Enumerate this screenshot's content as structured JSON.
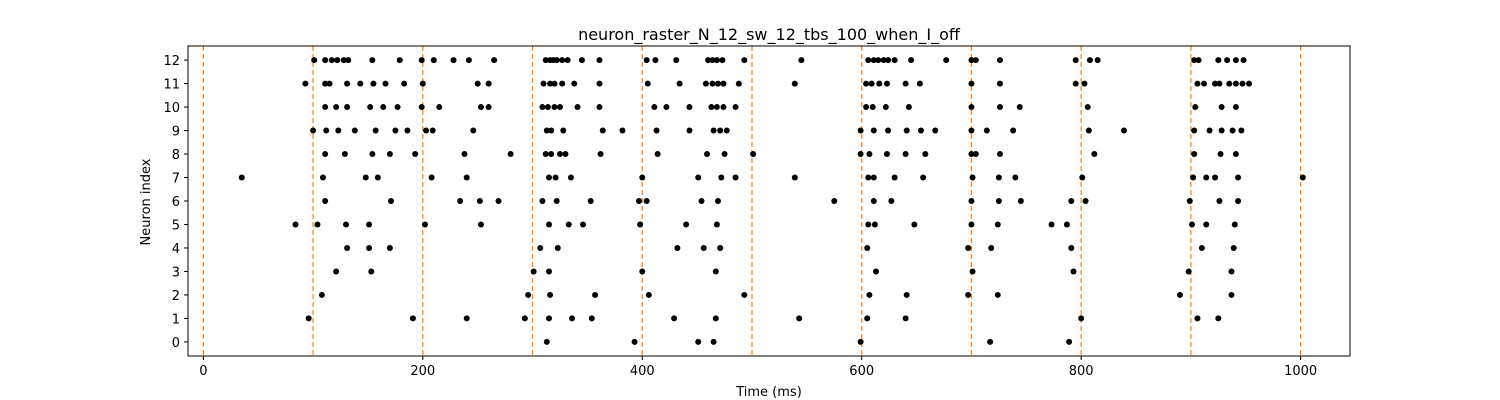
{
  "chart_data": {
    "type": "scatter",
    "title": "neuron_raster_N_12_sw_12_tbs_100_when_I_off",
    "xlabel": "Time (ms)",
    "ylabel": "Neuron index",
    "xlim": [
      -14,
      1045
    ],
    "ylim": [
      -0.6,
      12.6
    ],
    "xticks": [
      0,
      200,
      400,
      600,
      800,
      1000
    ],
    "yticks": [
      0,
      1,
      2,
      3,
      4,
      5,
      6,
      7,
      8,
      9,
      10,
      11,
      12
    ],
    "grid": false,
    "marker_color": "#000000",
    "vline_color": "#ff7f0e",
    "stimulus_lines": [
      0,
      100,
      200,
      300,
      400,
      500,
      600,
      700,
      800,
      900,
      1000
    ],
    "spikes": [
      {
        "neuron": 12,
        "times": [
          101,
          111,
          117,
          122,
          128,
          132,
          154,
          179,
          199,
          210,
          228,
          242,
          265,
          312,
          316,
          319,
          322,
          327,
          332,
          345,
          361,
          404,
          412,
          431,
          460,
          464,
          468,
          473,
          493,
          545,
          606,
          611,
          615,
          620,
          624,
          630,
          645,
          677,
          700,
          704,
          726,
          795,
          808,
          815,
          903,
          907,
          925,
          933,
          941,
          948
        ]
      },
      {
        "neuron": 11,
        "times": [
          93,
          111,
          115,
          131,
          143,
          155,
          166,
          183,
          200,
          250,
          260,
          310,
          316,
          320,
          327,
          338,
          361,
          405,
          434,
          458,
          464,
          469,
          474,
          488,
          539,
          604,
          609,
          616,
          623,
          640,
          653,
          700,
          726,
          795,
          803,
          906,
          912,
          922,
          926,
          935,
          941,
          947,
          953
        ]
      },
      {
        "neuron": 10,
        "times": [
          111,
          121,
          131,
          152,
          164,
          177,
          199,
          215,
          253,
          260,
          309,
          314,
          320,
          325,
          341,
          361,
          411,
          422,
          443,
          463,
          468,
          474,
          485,
          604,
          610,
          622,
          643,
          700,
          726,
          744,
          806,
          904,
          928,
          941
        ]
      },
      {
        "neuron": 9,
        "times": [
          100,
          112,
          123,
          138,
          157,
          175,
          186,
          203,
          209,
          246,
          313,
          317,
          328,
          364,
          382,
          413,
          443,
          465,
          471,
          477,
          599,
          611,
          624,
          641,
          654,
          667,
          700,
          714,
          738,
          807,
          839,
          903,
          917,
          928,
          938,
          946
        ]
      },
      {
        "neuron": 8,
        "times": [
          111,
          129,
          154,
          170,
          193,
          238,
          280,
          312,
          317,
          325,
          330,
          362,
          414,
          459,
          475,
          501,
          599,
          607,
          623,
          640,
          658,
          700,
          704,
          726,
          812,
          903,
          927,
          941
        ]
      },
      {
        "neuron": 7,
        "times": [
          35,
          109,
          148,
          159,
          208,
          240,
          315,
          321,
          335,
          400,
          451,
          472,
          485,
          539,
          606,
          611,
          630,
          656,
          701,
          725,
          740,
          801,
          902,
          914,
          922,
          943,
          1002
        ]
      },
      {
        "neuron": 6,
        "times": [
          111,
          171,
          234,
          252,
          269,
          309,
          322,
          353,
          397,
          404,
          454,
          469,
          575,
          611,
          627,
          700,
          725,
          745,
          791,
          804,
          899,
          926,
          943
        ]
      },
      {
        "neuron": 5,
        "times": [
          84,
          104,
          130,
          151,
          202,
          253,
          315,
          333,
          346,
          398,
          440,
          468,
          606,
          612,
          648,
          700,
          724,
          773,
          787,
          901,
          914,
          940
        ]
      },
      {
        "neuron": 4,
        "times": [
          131,
          151,
          170,
          307,
          323,
          432,
          456,
          471,
          605,
          697,
          718,
          791,
          910,
          939
        ]
      },
      {
        "neuron": 3,
        "times": [
          121,
          153,
          301,
          315,
          400,
          467,
          613,
          701,
          793,
          898,
          937
        ]
      },
      {
        "neuron": 2,
        "times": [
          108,
          296,
          316,
          357,
          406,
          493,
          607,
          641,
          697,
          724,
          890,
          937
        ]
      },
      {
        "neuron": 1,
        "times": [
          96,
          191,
          240,
          293,
          315,
          336,
          354,
          429,
          467,
          543,
          605,
          640,
          800,
          906,
          925
        ]
      },
      {
        "neuron": 0,
        "times": [
          313,
          393,
          451,
          465,
          599,
          717,
          789
        ]
      }
    ]
  }
}
